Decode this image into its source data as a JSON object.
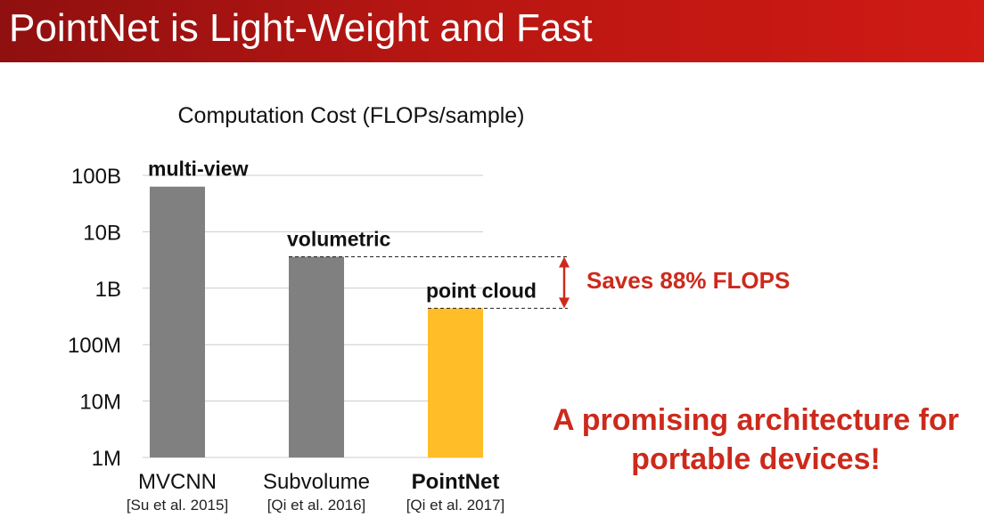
{
  "slide": {
    "title": "PointNet is Light-Weight and Fast"
  },
  "chart_data": {
    "type": "bar",
    "title": "Computation Cost (FLOPs/sample)",
    "scale": "log",
    "ylim": [
      1000000,
      100000000000
    ],
    "y_ticks": [
      {
        "value": 100000000000,
        "label": "100B"
      },
      {
        "value": 10000000000,
        "label": "10B"
      },
      {
        "value": 1000000000,
        "label": "1B"
      },
      {
        "value": 100000000,
        "label": "100M"
      },
      {
        "value": 10000000,
        "label": "10M"
      },
      {
        "value": 1000000,
        "label": "1M"
      }
    ],
    "grid": true,
    "bars": [
      {
        "category": "MVCNN",
        "citation": "[Su et al. 2015]",
        "bar_label": "multi-view",
        "value": 63000000000,
        "color": "#808080",
        "bold_category": false
      },
      {
        "category": "Subvolume",
        "citation": "[Qi et al. 2016]",
        "bar_label": "volumetric",
        "value": 3600000000,
        "color": "#808080",
        "bold_category": false
      },
      {
        "category": "PointNet",
        "citation": "[Qi et al. 2017]",
        "bar_label": "point cloud",
        "value": 440000000,
        "color": "#ffbe28",
        "bold_category": true
      }
    ],
    "annotation": {
      "text": "Saves 88% FLOPS",
      "from_bar": 1,
      "to_bar": 2,
      "color": "#cc2a1c"
    }
  },
  "callouts": {
    "promise": "A promising architecture for portable devices!"
  },
  "colors": {
    "header": "#b81612",
    "accent_red": "#cc2a1c",
    "grid": "#cccccc"
  }
}
